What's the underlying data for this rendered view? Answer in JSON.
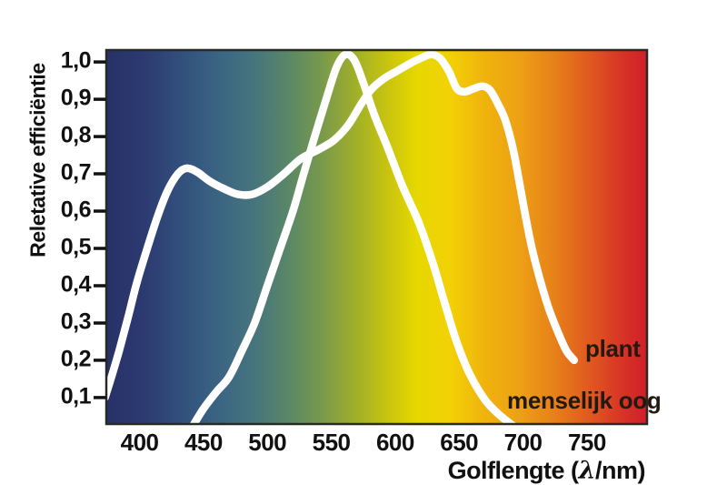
{
  "figure": {
    "background_color": "#ffffff",
    "y_axis": {
      "title": "Reletative efficiëntie",
      "tick_labels": [
        "1,0",
        "0,9",
        "0,8",
        "0,7",
        "0,6",
        "0,5",
        "0,4",
        "0,3",
        "0,2",
        "0,1"
      ],
      "tick_values": [
        1.0,
        0.9,
        0.8,
        0.7,
        0.6,
        0.5,
        0.4,
        0.3,
        0.2,
        0.1
      ]
    },
    "x_axis": {
      "title_prefix": "Golflengte (",
      "title_lambda": "λ",
      "title_suffix": "/nm)",
      "tick_labels": [
        "400",
        "450",
        "500",
        "550",
        "600",
        "650",
        "700",
        "750"
      ],
      "tick_values": [
        400,
        450,
        500,
        550,
        600,
        650,
        700,
        750
      ]
    },
    "curve_labels": {
      "plant": "plant",
      "eye": "menselijk oog"
    }
  },
  "style": {
    "curve_color": "#ffffff",
    "curve_width": 8.5,
    "tick_color": "#111111",
    "border_color": "#2a2a24",
    "label_text_color": "#22190f"
  },
  "chart_data": {
    "type": "line",
    "title": "",
    "xlabel": "Golflengte (λ/nm)",
    "ylabel": "Reletative efficiëntie",
    "xlim": [
      374,
      797
    ],
    "ylim": [
      0.029,
      1.032
    ],
    "x_ticks": [
      400,
      450,
      500,
      550,
      600,
      650,
      700,
      750
    ],
    "y_ticks": [
      1.0,
      0.9,
      0.8,
      0.7,
      0.6,
      0.5,
      0.4,
      0.3,
      0.2,
      0.1
    ],
    "grid": false,
    "legend_position": "inside-right-as-text-labels",
    "background_gradient": {
      "direction": "left-to-right",
      "stops": [
        {
          "pos": 0.0,
          "color": "#273167"
        },
        {
          "pos": 0.07,
          "color": "#2c3a71"
        },
        {
          "pos": 0.14,
          "color": "#32507c"
        },
        {
          "pos": 0.21,
          "color": "#3b6583"
        },
        {
          "pos": 0.28,
          "color": "#48767c"
        },
        {
          "pos": 0.34,
          "color": "#5b8866"
        },
        {
          "pos": 0.4,
          "color": "#799a4b"
        },
        {
          "pos": 0.46,
          "color": "#a0af29"
        },
        {
          "pos": 0.52,
          "color": "#c8c40f"
        },
        {
          "pos": 0.575,
          "color": "#e7d800"
        },
        {
          "pos": 0.635,
          "color": "#f2d106"
        },
        {
          "pos": 0.7,
          "color": "#f0b30d"
        },
        {
          "pos": 0.765,
          "color": "#eda015"
        },
        {
          "pos": 0.835,
          "color": "#e67d19"
        },
        {
          "pos": 0.9,
          "color": "#df5520"
        },
        {
          "pos": 0.955,
          "color": "#d73326"
        },
        {
          "pos": 1.0,
          "color": "#cf1f2a"
        }
      ]
    },
    "series": [
      {
        "name": "plant",
        "color": "#ffffff",
        "points": [
          [
            373,
            0.1
          ],
          [
            378,
            0.155
          ],
          [
            384,
            0.225
          ],
          [
            391,
            0.315
          ],
          [
            398,
            0.41
          ],
          [
            406,
            0.5
          ],
          [
            414,
            0.585
          ],
          [
            422,
            0.655
          ],
          [
            430,
            0.7
          ],
          [
            437,
            0.715
          ],
          [
            445,
            0.705
          ],
          [
            455,
            0.68
          ],
          [
            466,
            0.66
          ],
          [
            477,
            0.645
          ],
          [
            488,
            0.645
          ],
          [
            500,
            0.665
          ],
          [
            513,
            0.7
          ],
          [
            526,
            0.74
          ],
          [
            540,
            0.765
          ],
          [
            552,
            0.79
          ],
          [
            563,
            0.83
          ],
          [
            573,
            0.885
          ],
          [
            581,
            0.925
          ],
          [
            591,
            0.955
          ],
          [
            601,
            0.975
          ],
          [
            611,
            0.995
          ],
          [
            620,
            1.01
          ],
          [
            628,
            1.02
          ],
          [
            635,
            1.01
          ],
          [
            642,
            0.975
          ],
          [
            648,
            0.93
          ],
          [
            654,
            0.92
          ],
          [
            661,
            0.928
          ],
          [
            668,
            0.935
          ],
          [
            674,
            0.925
          ],
          [
            680,
            0.89
          ],
          [
            686,
            0.845
          ],
          [
            692,
            0.77
          ],
          [
            697,
            0.68
          ],
          [
            702,
            0.585
          ],
          [
            707,
            0.5
          ],
          [
            713,
            0.42
          ],
          [
            720,
            0.34
          ],
          [
            728,
            0.27
          ],
          [
            734,
            0.225
          ],
          [
            740,
            0.2
          ]
        ]
      },
      {
        "name": "menselijk oog",
        "color": "#ffffff",
        "points": [
          [
            441,
            0.02
          ],
          [
            450,
            0.07
          ],
          [
            460,
            0.115
          ],
          [
            470,
            0.155
          ],
          [
            480,
            0.225
          ],
          [
            490,
            0.3
          ],
          [
            500,
            0.4
          ],
          [
            510,
            0.5
          ],
          [
            520,
            0.6
          ],
          [
            528,
            0.695
          ],
          [
            537,
            0.8
          ],
          [
            546,
            0.9
          ],
          [
            554,
            0.985
          ],
          [
            561,
            1.02
          ],
          [
            568,
            1.005
          ],
          [
            575,
            0.945
          ],
          [
            584,
            0.855
          ],
          [
            593,
            0.78
          ],
          [
            606,
            0.665
          ],
          [
            619,
            0.565
          ],
          [
            630,
            0.455
          ],
          [
            639,
            0.35
          ],
          [
            648,
            0.25
          ],
          [
            658,
            0.165
          ],
          [
            670,
            0.095
          ],
          [
            681,
            0.055
          ],
          [
            692,
            0.025
          ]
        ]
      }
    ]
  }
}
